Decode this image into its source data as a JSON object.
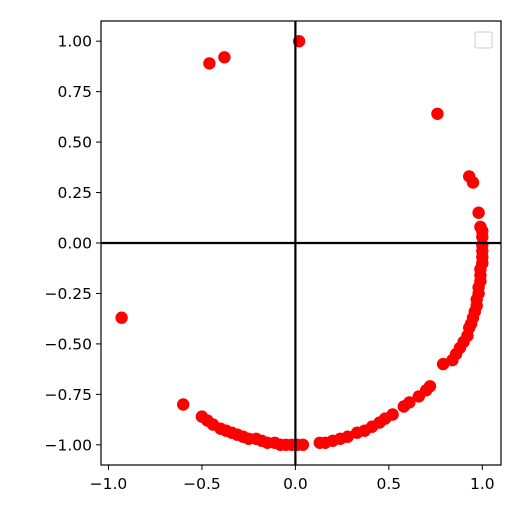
{
  "chart_data": {
    "type": "scatter",
    "title": "",
    "xlabel": "",
    "ylabel": "",
    "xlim": [
      -1.04,
      1.1
    ],
    "ylim": [
      -1.1,
      1.1
    ],
    "xticks": [
      -1.0,
      -0.5,
      0.0,
      0.5,
      1.0
    ],
    "xtick_labels": [
      "−1.0",
      "−0.5",
      "0.0",
      "0.5",
      "1.0"
    ],
    "yticks": [
      1.0,
      0.75,
      0.5,
      0.25,
      0.0,
      -0.25,
      -0.5,
      -0.75,
      -1.0
    ],
    "ytick_labels": [
      "1.00",
      "0.75",
      "0.50",
      "0.25",
      "0.00",
      "−0.25",
      "−0.50",
      "−0.75",
      "−1.00"
    ],
    "grid": false,
    "legend": {
      "location": "top-right",
      "entries": []
    },
    "reference_lines": {
      "x": 0.0,
      "y": 0.0,
      "color": "#000000"
    },
    "marker_color": "#ff0000",
    "series": [
      {
        "points": [
          [
            0.02,
            1.0
          ],
          [
            -0.46,
            0.89
          ],
          [
            -0.38,
            0.92
          ],
          [
            0.76,
            0.64
          ],
          [
            0.93,
            0.33
          ],
          [
            0.95,
            0.3
          ],
          [
            0.98,
            0.15
          ],
          [
            -0.93,
            -0.37
          ],
          [
            -0.6,
            -0.8
          ],
          [
            0.99,
            0.08
          ],
          [
            1.0,
            0.06
          ],
          [
            1.0,
            0.03
          ],
          [
            1.0,
            -0.01
          ],
          [
            1.0,
            -0.04
          ],
          [
            1.0,
            -0.07
          ],
          [
            1.0,
            -0.1
          ],
          [
            0.99,
            -0.13
          ],
          [
            0.99,
            -0.16
          ],
          [
            0.99,
            -0.19
          ],
          [
            0.98,
            -0.22
          ],
          [
            0.98,
            -0.25
          ],
          [
            0.97,
            -0.28
          ],
          [
            0.97,
            -0.31
          ],
          [
            0.96,
            -0.34
          ],
          [
            0.95,
            -0.37
          ],
          [
            0.94,
            -0.4
          ],
          [
            0.93,
            -0.42
          ],
          [
            0.92,
            -0.46
          ],
          [
            0.9,
            -0.49
          ],
          [
            0.88,
            -0.52
          ],
          [
            0.86,
            -0.55
          ],
          [
            0.84,
            -0.58
          ],
          [
            0.79,
            -0.6
          ],
          [
            0.72,
            -0.71
          ],
          [
            0.7,
            -0.73
          ],
          [
            0.66,
            -0.76
          ],
          [
            0.61,
            -0.79
          ],
          [
            0.58,
            -0.81
          ],
          [
            0.52,
            -0.85
          ],
          [
            0.48,
            -0.87
          ],
          [
            0.45,
            -0.89
          ],
          [
            0.41,
            -0.91
          ],
          [
            0.37,
            -0.93
          ],
          [
            0.33,
            -0.94
          ],
          [
            0.28,
            -0.96
          ],
          [
            0.24,
            -0.97
          ],
          [
            0.2,
            -0.98
          ],
          [
            0.16,
            -0.99
          ],
          [
            0.13,
            -0.99
          ],
          [
            0.04,
            -1.0
          ],
          [
            0.01,
            -1.0
          ],
          [
            -0.02,
            -1.0
          ],
          [
            -0.05,
            -1.0
          ],
          [
            -0.08,
            -1.0
          ],
          [
            -0.11,
            -0.99
          ],
          [
            -0.15,
            -0.99
          ],
          [
            -0.18,
            -0.98
          ],
          [
            -0.21,
            -0.97
          ],
          [
            -0.25,
            -0.97
          ],
          [
            -0.28,
            -0.96
          ],
          [
            -0.31,
            -0.95
          ],
          [
            -0.34,
            -0.94
          ],
          [
            -0.37,
            -0.93
          ],
          [
            -0.4,
            -0.92
          ],
          [
            -0.44,
            -0.9
          ],
          [
            -0.47,
            -0.88
          ],
          [
            -0.5,
            -0.86
          ]
        ]
      }
    ]
  }
}
